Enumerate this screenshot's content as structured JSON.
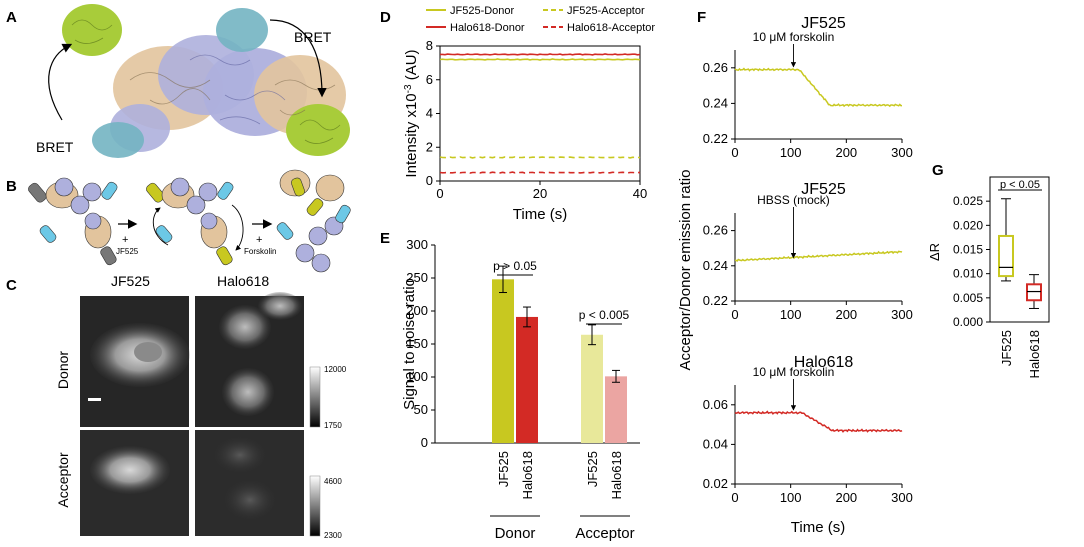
{
  "panels": {
    "A": {
      "letter": "A",
      "bret_left": "BRET",
      "bret_right": "BRET"
    },
    "B": {
      "letter": "B",
      "step1": "JF525",
      "step2": "Forskolin",
      "plus": "+"
    },
    "C": {
      "letter": "C",
      "col1": "JF525",
      "col2": "Halo618",
      "row1": "Donor",
      "row2": "Acceptor",
      "cbar_donor_max": "12000",
      "cbar_donor_min": "1750",
      "cbar_acc_max": "4600",
      "cbar_acc_min": "2300"
    },
    "D": {
      "letter": "D"
    },
    "E": {
      "letter": "E"
    },
    "F": {
      "letter": "F"
    },
    "G": {
      "letter": "G"
    }
  },
  "colors": {
    "jf525": "#c8c820",
    "jf525_light": "#e8e89a",
    "halo618": "#d32a25",
    "halo618_light": "#eba5a2",
    "protein_tan": "#e2c49d",
    "protein_purple": "#aeb0dd",
    "protein_green": "#a8cc3a",
    "protein_teal": "#73b4c2",
    "tag_blue": "#6cc8e6",
    "tag_grey": "#777777"
  },
  "chart_data": [
    {
      "id": "D",
      "type": "line",
      "xlabel": "Time (s)",
      "ylabel": "Intensity x10",
      "ylabel_sup": "-3",
      "ylabel_unit": " (AU)",
      "xlim": [
        0,
        40
      ],
      "ylim": [
        0,
        8
      ],
      "xticks": [
        "0",
        "20",
        "40"
      ],
      "yticks": [
        "0",
        "2",
        "4",
        "6",
        "8"
      ],
      "series": [
        {
          "name": "JF525-Donor",
          "level": 7.2,
          "style": "solid",
          "color": "#c8c820"
        },
        {
          "name": "JF525-Acceptor",
          "level": 1.4,
          "style": "dashed",
          "color": "#c8c820"
        },
        {
          "name": "Halo618-Donor",
          "level": 7.5,
          "style": "solid",
          "color": "#d32a25"
        },
        {
          "name": "Halo618-Acceptor",
          "level": 0.5,
          "style": "dashed",
          "color": "#d32a25"
        }
      ]
    },
    {
      "id": "E",
      "type": "bar",
      "ylabel": "Signal to noise ratio",
      "ylim": [
        0,
        300
      ],
      "yticks": [
        "0",
        "50",
        "100",
        "150",
        "200",
        "250",
        "300"
      ],
      "groups": [
        "Donor",
        "Acceptor"
      ],
      "bars": [
        {
          "group": "Donor",
          "label": "JF525",
          "value": 248,
          "err": 20,
          "color": "#c8c820"
        },
        {
          "group": "Donor",
          "label": "Halo618",
          "value": 191,
          "err": 15,
          "color": "#d32a25"
        },
        {
          "group": "Acceptor",
          "label": "JF525",
          "value": 164,
          "err": 15,
          "color": "#e8e89a"
        },
        {
          "group": "Acceptor",
          "label": "Halo618",
          "value": 101,
          "err": 9,
          "color": "#eba5a2"
        }
      ],
      "annotations": [
        "p > 0.05",
        "p < 0.005"
      ]
    },
    {
      "id": "F",
      "type": "line",
      "shared_ylabel": "Acceptor/Donor emission ratio",
      "xlabel": "Time (s)",
      "xlim": [
        0,
        300
      ],
      "xticks": [
        "0",
        "100",
        "200",
        "300"
      ],
      "subplots": [
        {
          "title": "JF525",
          "annotation": "10 μM forskolin",
          "ylim": [
            0.22,
            0.27
          ],
          "yticks": [
            "0.22",
            "0.24",
            "0.26"
          ],
          "color": "#c8c820",
          "baseline": 0.259,
          "final": 0.239,
          "drop_start": 115,
          "drop_end": 170,
          "arrow_x": 105
        },
        {
          "title": "JF525",
          "annotation": "HBSS (mock)",
          "ylim": [
            0.22,
            0.27
          ],
          "yticks": [
            "0.22",
            "0.24",
            "0.26"
          ],
          "color": "#c8c820",
          "baseline": 0.243,
          "final": 0.248,
          "drop_start": 0,
          "drop_end": 300,
          "arrow_x": 105
        },
        {
          "title": "Halo618",
          "annotation": "10 μM forskolin",
          "ylim": [
            0.02,
            0.07
          ],
          "yticks": [
            "0.02",
            "0.04",
            "0.06"
          ],
          "color": "#d32a25",
          "baseline": 0.056,
          "final": 0.047,
          "drop_start": 120,
          "drop_end": 175,
          "arrow_x": 105
        }
      ]
    },
    {
      "id": "G",
      "type": "box",
      "ylabel": "ΔR",
      "ylim": [
        0,
        0.03
      ],
      "yticks": [
        "0.000",
        "0.005",
        "0.010",
        "0.015",
        "0.020",
        "0.025"
      ],
      "annotation": "p < 0.05",
      "boxes": [
        {
          "label": "JF525",
          "min": 0.0085,
          "q1": 0.0095,
          "median": 0.0113,
          "q3": 0.0178,
          "max": 0.0255,
          "color": "#c8c820"
        },
        {
          "label": "Halo618",
          "min": 0.0028,
          "q1": 0.0045,
          "median": 0.0063,
          "q3": 0.0078,
          "max": 0.0098,
          "color": "#d32a25"
        }
      ]
    }
  ]
}
